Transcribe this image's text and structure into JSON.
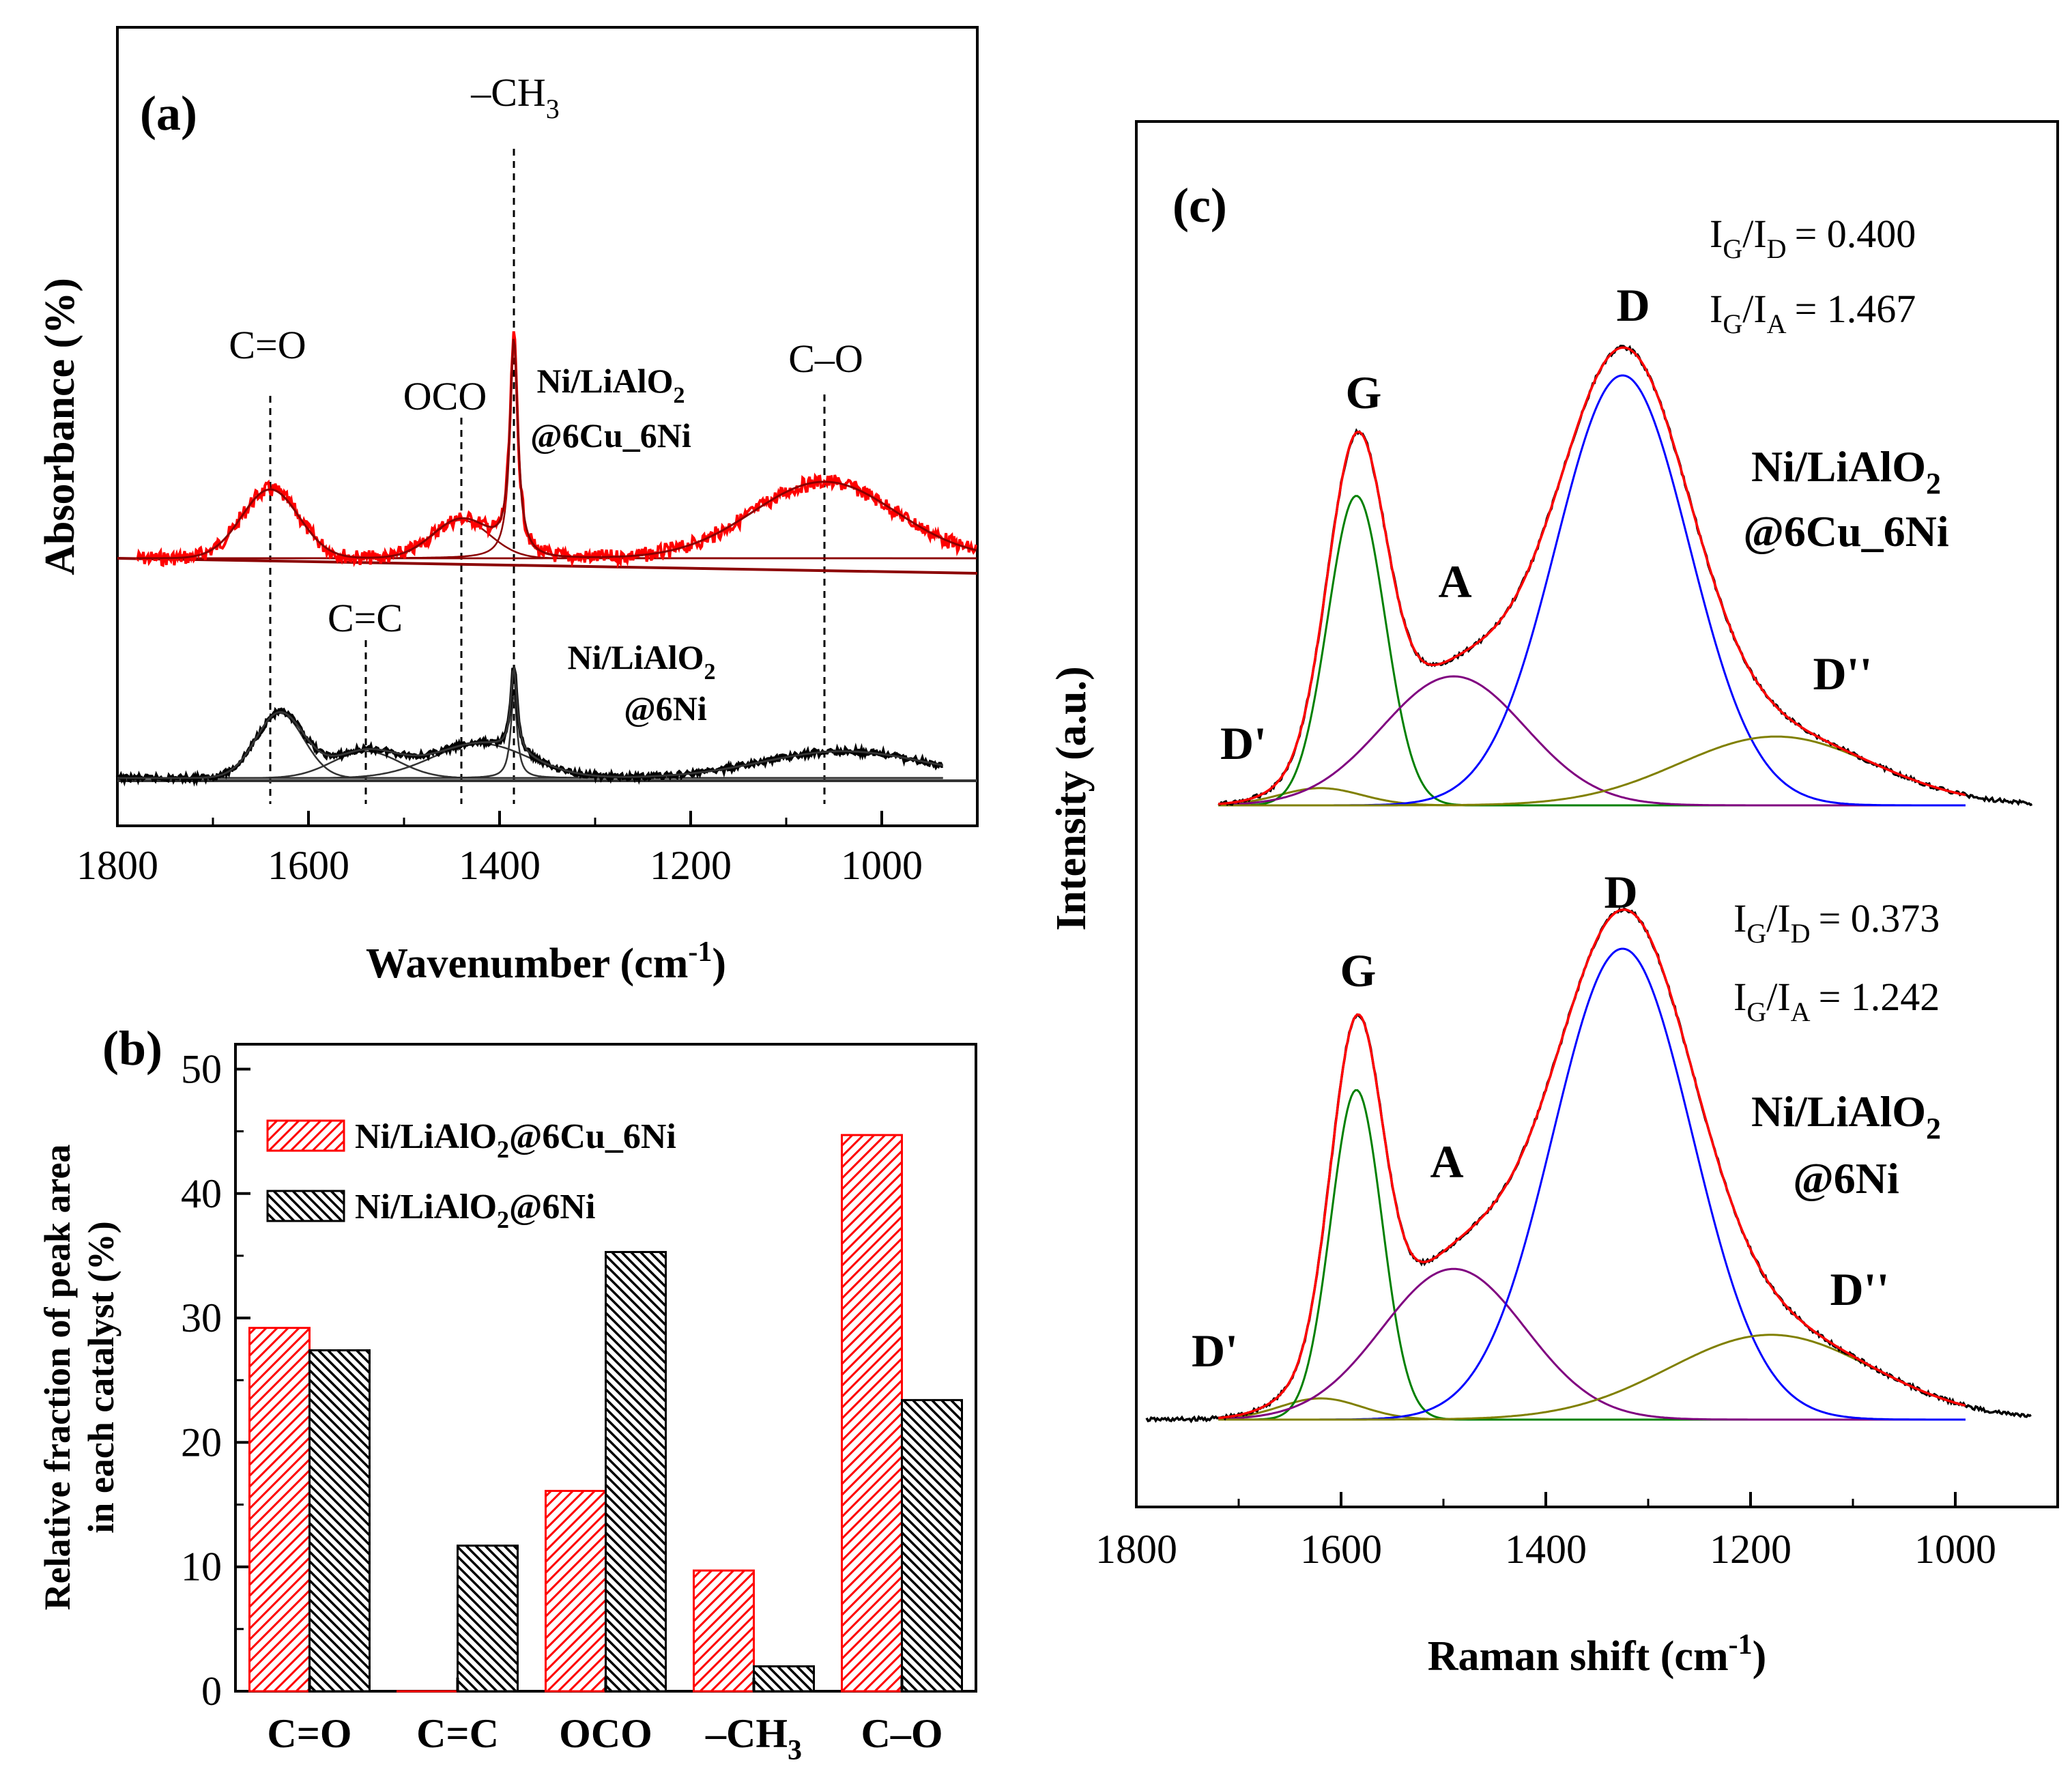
{
  "colors": {
    "red_series": "#ff0000",
    "red_fit": "#8b0000",
    "black_series": "#000000",
    "g_peak": "#008000",
    "a_peak": "#800080",
    "d_peak": "#0000ff",
    "d2_peak": "#808000",
    "dp_peak": "#808000",
    "fit_total": "#ff0000"
  },
  "panel_a": {
    "label": "(a)",
    "xlabel_main": "Wavenumber (cm",
    "xlabel_sup": "-1",
    "xlabel_close": ")",
    "ylabel": "Absorbance (%)",
    "xlim": [
      1800,
      900
    ],
    "ticks": [
      "1800",
      "1600",
      "1400",
      "1200",
      "1000"
    ],
    "peak_labels": {
      "co_double": "C=O",
      "oco": "OCO",
      "ch3_main": "–CH",
      "ch3_sub": "3",
      "c_o": "C–O",
      "cc": "C=C"
    },
    "series": [
      {
        "name_main": "Ni/LiAlO",
        "name_sub": "2",
        "name_line2": "@6Cu_6Ni",
        "color": "#ff0000",
        "peaks": [
          {
            "center": 1640,
            "label": "C=O"
          },
          {
            "center": 1440,
            "label": "OCO"
          },
          {
            "center": 1385,
            "label": "-CH3"
          },
          {
            "center": 1060,
            "label": "C-O"
          }
        ]
      },
      {
        "name_main": "Ni/LiAlO",
        "name_sub": "2",
        "name_line2": "@6Ni",
        "color": "#000000",
        "peaks": [
          {
            "center": 1630,
            "label": "C=O"
          },
          {
            "center": 1540,
            "label": "C=C"
          },
          {
            "center": 1420,
            "label": "OCO"
          },
          {
            "center": 1385,
            "label": "-CH3"
          },
          {
            "center": 1040,
            "label": "C-O"
          }
        ]
      }
    ]
  },
  "panel_b": {
    "label": "(b)",
    "ylabel_line1": "Relative fraction of peak area",
    "ylabel_line2": "in each catalyst (%)",
    "ylim": [
      0,
      52
    ],
    "yticks": [
      "0",
      "10",
      "20",
      "30",
      "40",
      "50"
    ],
    "categories": [
      {
        "main": "C=O",
        "sub": ""
      },
      {
        "main": "C=C",
        "sub": ""
      },
      {
        "main": "OCO",
        "sub": ""
      },
      {
        "main": "–CH",
        "sub": "3"
      },
      {
        "main": "C–O",
        "sub": ""
      }
    ],
    "legend": [
      {
        "main": "Ni/LiAlO",
        "sub": "2",
        "rest": "@6Cu_6Ni"
      },
      {
        "main": "Ni/LiAlO",
        "sub": "2",
        "rest": "@6Ni"
      }
    ]
  },
  "panel_c": {
    "label": "(c)",
    "xlabel_main": "Raman shift (cm",
    "xlabel_sup": "-1",
    "xlabel_close": ")",
    "ylabel": "Intensity (a.u.)",
    "xlim": [
      1800,
      900
    ],
    "ticks": [
      "1800",
      "1600",
      "1400",
      "1200",
      "1000"
    ],
    "bands": {
      "g": "G",
      "a": "A",
      "d": "D",
      "d2": "D''",
      "dp": "D'"
    },
    "ratio_i": "I",
    "ratio_g": "G",
    "ratio_d": "D",
    "ratio_a": "A",
    "top": {
      "name_main": "Ni/LiAlO",
      "name_sub": "2",
      "name_line2": "@6Cu_6Ni",
      "ig_id": "= 0.400",
      "ig_ia": "= 1.467"
    },
    "bottom": {
      "name_main": "Ni/LiAlO",
      "name_sub": "2",
      "name_line2": "@6Ni",
      "ig_id": "= 0.373",
      "ig_ia": "= 1.242"
    }
  },
  "chart_data": [
    {
      "type": "line",
      "title": "(a)",
      "xlabel": "Wavenumber (cm-1)",
      "ylabel": "Absorbance (%)",
      "xlim": [
        1800,
        900
      ],
      "xticks": [
        1800,
        1600,
        1400,
        1200,
        1000
      ],
      "reference_lines": [
        {
          "x": 1640,
          "label": "C=O"
        },
        {
          "x": 1540,
          "label": "C=C"
        },
        {
          "x": 1440,
          "label": "OCO"
        },
        {
          "x": 1385,
          "label": "-CH3"
        },
        {
          "x": 1060,
          "label": "C-O"
        }
      ],
      "series": [
        {
          "name": "Ni/LiAlO2@6Cu_6Ni",
          "peaks": [
            {
              "center": 1640,
              "width": 30,
              "height": 0.9
            },
            {
              "center": 1440,
              "width": 30,
              "height": 0.5
            },
            {
              "center": 1385,
              "width": 5,
              "height": 2.8
            },
            {
              "center": 1060,
              "width": 75,
              "height": 1.0
            }
          ]
        },
        {
          "name": "Ni/LiAlO2@6Ni",
          "peaks": [
            {
              "center": 1630,
              "width": 25,
              "height": 0.85
            },
            {
              "center": 1540,
              "width": 35,
              "height": 0.35
            },
            {
              "center": 1420,
              "width": 50,
              "height": 0.45
            },
            {
              "center": 1385,
              "width": 4,
              "height": 1.1
            },
            {
              "center": 1040,
              "width": 85,
              "height": 0.35
            }
          ]
        }
      ]
    },
    {
      "type": "bar",
      "title": "(b)",
      "ylabel": "Relative fraction of peak area in each catalyst (%)",
      "ylim": [
        0,
        52
      ],
      "categories": [
        "C=O",
        "C=C",
        "OCO",
        "-CH3",
        "C-O"
      ],
      "series": [
        {
          "name": "Ni/LiAlO2@6Cu_6Ni",
          "values": [
            29.2,
            0,
            16.1,
            9.7,
            44.7
          ]
        },
        {
          "name": "Ni/LiAlO2@6Ni",
          "values": [
            27.4,
            11.7,
            35.3,
            2.0,
            23.4
          ]
        }
      ]
    },
    {
      "type": "line",
      "title": "(c)",
      "xlabel": "Raman shift (cm-1)",
      "ylabel": "Intensity (a.u.)",
      "xlim": [
        1800,
        900
      ],
      "xticks": [
        1800,
        1600,
        1400,
        1200,
        1000
      ],
      "series": [
        {
          "name": "Ni/LiAlO2@6Cu_6Ni",
          "IG_ID": 0.4,
          "IG_IA": 1.467,
          "bands": [
            {
              "name": "D'",
              "center": 1620,
              "width": 40,
              "height": 0.04
            },
            {
              "name": "G",
              "center": 1585,
              "width": 28,
              "height": 0.72
            },
            {
              "name": "A",
              "center": 1490,
              "width": 70,
              "height": 0.3
            },
            {
              "name": "D",
              "center": 1325,
              "width": 65,
              "height": 1.0
            },
            {
              "name": "D''",
              "center": 1175,
              "width": 95,
              "height": 0.16
            }
          ]
        },
        {
          "name": "Ni/LiAlO2@6Ni",
          "IG_ID": 0.373,
          "IG_IA": 1.242,
          "bands": [
            {
              "name": "D'",
              "center": 1620,
              "width": 40,
              "height": 0.045
            },
            {
              "name": "G",
              "center": 1585,
              "width": 25,
              "height": 0.7
            },
            {
              "name": "A",
              "center": 1490,
              "width": 70,
              "height": 0.32
            },
            {
              "name": "D",
              "center": 1325,
              "width": 68,
              "height": 1.0
            },
            {
              "name": "D''",
              "center": 1180,
              "width": 100,
              "height": 0.18
            }
          ]
        }
      ]
    }
  ]
}
